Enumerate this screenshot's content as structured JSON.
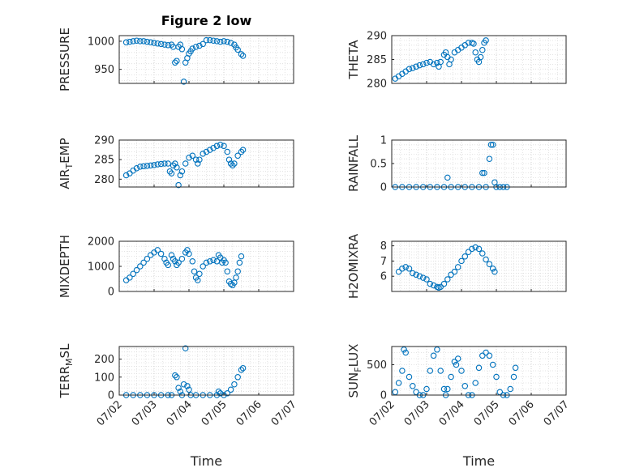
{
  "chart_data": {
    "title": "Figure 2 low",
    "xlabel": "Time",
    "marker_color": "#0072BD",
    "x_ticks": [
      "07/02",
      "07/03",
      "07/04",
      "07/05",
      "07/06",
      "07/07"
    ],
    "x_range_days": [
      2,
      7
    ],
    "subplots": [
      {
        "type": "scatter",
        "ylabel": "PRESSURE",
        "ylim": [
          925,
          1010
        ],
        "yticks": [
          "950",
          "1000"
        ],
        "ytick_values": [
          950,
          1000
        ],
        "grid": true,
        "points": [
          [
            2.2,
            998
          ],
          [
            2.3,
            999
          ],
          [
            2.4,
            1000
          ],
          [
            2.5,
            1001
          ],
          [
            2.6,
            1000
          ],
          [
            2.7,
            1000
          ],
          [
            2.8,
            999
          ],
          [
            2.9,
            998
          ],
          [
            3.0,
            997
          ],
          [
            3.1,
            996
          ],
          [
            3.2,
            995
          ],
          [
            3.3,
            994
          ],
          [
            3.4,
            993
          ],
          [
            3.5,
            994
          ],
          [
            3.55,
            990
          ],
          [
            3.6,
            962
          ],
          [
            3.65,
            965
          ],
          [
            3.7,
            990
          ],
          [
            3.75,
            994
          ],
          [
            3.8,
            986
          ],
          [
            3.85,
            928
          ],
          [
            3.9,
            962
          ],
          [
            3.95,
            970
          ],
          [
            4.0,
            978
          ],
          [
            4.05,
            982
          ],
          [
            4.1,
            987
          ],
          [
            4.2,
            990
          ],
          [
            4.3,
            992
          ],
          [
            4.4,
            995
          ],
          [
            4.5,
            1002
          ],
          [
            4.6,
            1002
          ],
          [
            4.7,
            1001
          ],
          [
            4.8,
            1000
          ],
          [
            4.9,
            999
          ],
          [
            5.0,
            1000
          ],
          [
            5.1,
            999
          ],
          [
            5.2,
            997
          ],
          [
            5.3,
            994
          ],
          [
            5.35,
            989
          ],
          [
            5.4,
            985
          ],
          [
            5.5,
            977
          ],
          [
            5.55,
            974
          ]
        ]
      },
      {
        "type": "scatter",
        "ylabel": "THETA",
        "ylim": [
          280,
          290
        ],
        "yticks": [
          "280",
          "285",
          "290"
        ],
        "ytick_values": [
          280,
          285,
          290
        ],
        "grid": true,
        "points": [
          [
            2.1,
            281
          ],
          [
            2.2,
            281.5
          ],
          [
            2.3,
            282
          ],
          [
            2.4,
            282.5
          ],
          [
            2.5,
            283
          ],
          [
            2.6,
            283.2
          ],
          [
            2.7,
            283.5
          ],
          [
            2.8,
            283.8
          ],
          [
            2.9,
            284
          ],
          [
            3.0,
            284.3
          ],
          [
            3.1,
            284.5
          ],
          [
            3.2,
            284
          ],
          [
            3.3,
            284.3
          ],
          [
            3.35,
            283.5
          ],
          [
            3.4,
            284.5
          ],
          [
            3.5,
            286
          ],
          [
            3.55,
            286.5
          ],
          [
            3.6,
            285.5
          ],
          [
            3.65,
            284
          ],
          [
            3.7,
            285
          ],
          [
            3.8,
            286.5
          ],
          [
            3.9,
            287
          ],
          [
            4.0,
            287.5
          ],
          [
            4.1,
            288
          ],
          [
            4.2,
            288.5
          ],
          [
            4.3,
            288.5
          ],
          [
            4.35,
            288.3
          ],
          [
            4.4,
            286.5
          ],
          [
            4.45,
            285
          ],
          [
            4.5,
            284.5
          ],
          [
            4.55,
            285.5
          ],
          [
            4.6,
            287
          ],
          [
            4.65,
            288.5
          ],
          [
            4.7,
            289
          ]
        ]
      },
      {
        "type": "scatter",
        "ylabel": "AIR_TEMP",
        "ylim": [
          278,
          290
        ],
        "yticks": [
          "280",
          "285",
          "290"
        ],
        "ytick_values": [
          280,
          285,
          290
        ],
        "grid": true,
        "points": [
          [
            2.2,
            281
          ],
          [
            2.3,
            281.5
          ],
          [
            2.4,
            282.2
          ],
          [
            2.5,
            282.8
          ],
          [
            2.6,
            283.2
          ],
          [
            2.7,
            283.3
          ],
          [
            2.8,
            283.4
          ],
          [
            2.9,
            283.5
          ],
          [
            3.0,
            283.6
          ],
          [
            3.1,
            283.8
          ],
          [
            3.2,
            283.9
          ],
          [
            3.3,
            284
          ],
          [
            3.4,
            284
          ],
          [
            3.45,
            282
          ],
          [
            3.5,
            281.5
          ],
          [
            3.55,
            283.5
          ],
          [
            3.6,
            284
          ],
          [
            3.65,
            283
          ],
          [
            3.7,
            278.5
          ],
          [
            3.75,
            281
          ],
          [
            3.8,
            282
          ],
          [
            3.9,
            284
          ],
          [
            4.0,
            285.5
          ],
          [
            4.1,
            286
          ],
          [
            4.2,
            285
          ],
          [
            4.25,
            284
          ],
          [
            4.3,
            285
          ],
          [
            4.4,
            286.5
          ],
          [
            4.5,
            287
          ],
          [
            4.6,
            287.5
          ],
          [
            4.7,
            288
          ],
          [
            4.8,
            288.5
          ],
          [
            4.9,
            288.8
          ],
          [
            5.0,
            288.5
          ],
          [
            5.1,
            287
          ],
          [
            5.15,
            285
          ],
          [
            5.2,
            284
          ],
          [
            5.25,
            283.5
          ],
          [
            5.3,
            284
          ],
          [
            5.4,
            286
          ],
          [
            5.5,
            287
          ],
          [
            5.55,
            287.5
          ]
        ]
      },
      {
        "type": "scatter",
        "ylabel": "RAINFALL",
        "ylim": [
          0,
          1
        ],
        "yticks": [
          "0",
          "0.5",
          "1"
        ],
        "ytick_values": [
          0,
          0.5,
          1
        ],
        "grid": true,
        "points": [
          [
            2.1,
            0
          ],
          [
            2.3,
            0
          ],
          [
            2.5,
            0
          ],
          [
            2.7,
            0
          ],
          [
            2.9,
            0
          ],
          [
            3.1,
            0
          ],
          [
            3.3,
            0
          ],
          [
            3.5,
            0
          ],
          [
            3.6,
            0.2
          ],
          [
            3.7,
            0
          ],
          [
            3.9,
            0
          ],
          [
            4.1,
            0
          ],
          [
            4.3,
            0
          ],
          [
            4.5,
            0
          ],
          [
            4.6,
            0.3
          ],
          [
            4.65,
            0.3
          ],
          [
            4.7,
            0
          ],
          [
            4.8,
            0.6
          ],
          [
            4.85,
            0.9
          ],
          [
            4.9,
            0.9
          ],
          [
            4.95,
            0.1
          ],
          [
            5.0,
            0
          ],
          [
            5.1,
            0
          ],
          [
            5.2,
            0
          ],
          [
            5.3,
            0
          ]
        ]
      },
      {
        "type": "scatter",
        "ylabel": "MIXDEPTH",
        "ylim": [
          0,
          2000
        ],
        "yticks": [
          "0",
          "1000",
          "2000"
        ],
        "ytick_values": [
          0,
          1000,
          2000
        ],
        "grid": true,
        "points": [
          [
            2.2,
            450
          ],
          [
            2.3,
            550
          ],
          [
            2.4,
            700
          ],
          [
            2.5,
            850
          ],
          [
            2.6,
            1000
          ],
          [
            2.7,
            1150
          ],
          [
            2.8,
            1300
          ],
          [
            2.9,
            1450
          ],
          [
            3.0,
            1550
          ],
          [
            3.1,
            1650
          ],
          [
            3.2,
            1500
          ],
          [
            3.3,
            1300
          ],
          [
            3.35,
            1150
          ],
          [
            3.4,
            1050
          ],
          [
            3.5,
            1450
          ],
          [
            3.55,
            1300
          ],
          [
            3.6,
            1200
          ],
          [
            3.65,
            1050
          ],
          [
            3.7,
            1150
          ],
          [
            3.8,
            1300
          ],
          [
            3.9,
            1550
          ],
          [
            3.95,
            1650
          ],
          [
            4.0,
            1500
          ],
          [
            4.1,
            1200
          ],
          [
            4.15,
            800
          ],
          [
            4.2,
            550
          ],
          [
            4.25,
            450
          ],
          [
            4.3,
            700
          ],
          [
            4.4,
            1000
          ],
          [
            4.5,
            1150
          ],
          [
            4.6,
            1200
          ],
          [
            4.7,
            1250
          ],
          [
            4.8,
            1200
          ],
          [
            4.85,
            1450
          ],
          [
            4.9,
            1350
          ],
          [
            4.95,
            1150
          ],
          [
            5.0,
            1250
          ],
          [
            5.05,
            1150
          ],
          [
            5.1,
            800
          ],
          [
            5.15,
            400
          ],
          [
            5.2,
            300
          ],
          [
            5.25,
            250
          ],
          [
            5.3,
            350
          ],
          [
            5.35,
            550
          ],
          [
            5.4,
            800
          ],
          [
            5.45,
            1150
          ],
          [
            5.5,
            1400
          ]
        ]
      },
      {
        "type": "scatter",
        "ylabel": "H2OMIXRA",
        "ylim": [
          5,
          8.3
        ],
        "yticks": [
          "6",
          "7",
          "8"
        ],
        "ytick_values": [
          6,
          7,
          8
        ],
        "grid": true,
        "points": [
          [
            2.2,
            6.3
          ],
          [
            2.3,
            6.5
          ],
          [
            2.4,
            6.6
          ],
          [
            2.5,
            6.5
          ],
          [
            2.6,
            6.2
          ],
          [
            2.7,
            6.1
          ],
          [
            2.8,
            6.0
          ],
          [
            2.9,
            5.9
          ],
          [
            3.0,
            5.8
          ],
          [
            3.1,
            5.5
          ],
          [
            3.2,
            5.4
          ],
          [
            3.3,
            5.3
          ],
          [
            3.35,
            5.25
          ],
          [
            3.4,
            5.3
          ],
          [
            3.5,
            5.5
          ],
          [
            3.6,
            5.8
          ],
          [
            3.7,
            6.1
          ],
          [
            3.8,
            6.3
          ],
          [
            3.9,
            6.6
          ],
          [
            4.0,
            7.0
          ],
          [
            4.1,
            7.3
          ],
          [
            4.2,
            7.6
          ],
          [
            4.3,
            7.8
          ],
          [
            4.4,
            7.9
          ],
          [
            4.5,
            7.8
          ],
          [
            4.6,
            7.5
          ],
          [
            4.7,
            7.1
          ],
          [
            4.8,
            6.8
          ],
          [
            4.9,
            6.5
          ],
          [
            4.95,
            6.3
          ]
        ]
      },
      {
        "type": "scatter",
        "ylabel": "TERR_MSL",
        "ylim": [
          0,
          270
        ],
        "yticks": [
          "0",
          "100",
          "200"
        ],
        "ytick_values": [
          0,
          100,
          200
        ],
        "grid": true,
        "points": [
          [
            2.2,
            0
          ],
          [
            2.4,
            0
          ],
          [
            2.6,
            0
          ],
          [
            2.8,
            0
          ],
          [
            3.0,
            0
          ],
          [
            3.2,
            0
          ],
          [
            3.4,
            0
          ],
          [
            3.5,
            0
          ],
          [
            3.6,
            110
          ],
          [
            3.65,
            100
          ],
          [
            3.7,
            40
          ],
          [
            3.75,
            20
          ],
          [
            3.8,
            0
          ],
          [
            3.85,
            60
          ],
          [
            3.9,
            260
          ],
          [
            3.95,
            50
          ],
          [
            4.0,
            30
          ],
          [
            4.05,
            0
          ],
          [
            4.2,
            0
          ],
          [
            4.4,
            0
          ],
          [
            4.6,
            0
          ],
          [
            4.8,
            0
          ],
          [
            4.85,
            20
          ],
          [
            4.9,
            10
          ],
          [
            5.0,
            0
          ],
          [
            5.1,
            10
          ],
          [
            5.2,
            30
          ],
          [
            5.3,
            60
          ],
          [
            5.4,
            100
          ],
          [
            5.5,
            140
          ],
          [
            5.55,
            150
          ]
        ]
      },
      {
        "type": "scatter",
        "ylabel": "SUN_FLUX",
        "ylim": [
          0,
          800
        ],
        "yticks": [
          "0",
          "500"
        ],
        "ytick_values": [
          0,
          500
        ],
        "grid": true,
        "points": [
          [
            2.1,
            50
          ],
          [
            2.2,
            200
          ],
          [
            2.3,
            400
          ],
          [
            2.35,
            750
          ],
          [
            2.4,
            700
          ],
          [
            2.5,
            300
          ],
          [
            2.6,
            150
          ],
          [
            2.7,
            50
          ],
          [
            2.8,
            0
          ],
          [
            2.9,
            0
          ],
          [
            3.0,
            100
          ],
          [
            3.1,
            400
          ],
          [
            3.2,
            650
          ],
          [
            3.3,
            750
          ],
          [
            3.4,
            400
          ],
          [
            3.5,
            100
          ],
          [
            3.55,
            0
          ],
          [
            3.6,
            100
          ],
          [
            3.7,
            300
          ],
          [
            3.8,
            550
          ],
          [
            3.85,
            500
          ],
          [
            3.9,
            600
          ],
          [
            4.0,
            400
          ],
          [
            4.1,
            150
          ],
          [
            4.2,
            0
          ],
          [
            4.3,
            0
          ],
          [
            4.4,
            200
          ],
          [
            4.5,
            450
          ],
          [
            4.6,
            650
          ],
          [
            4.7,
            700
          ],
          [
            4.8,
            650
          ],
          [
            4.9,
            500
          ],
          [
            5.0,
            300
          ],
          [
            5.1,
            50
          ],
          [
            5.2,
            0
          ],
          [
            5.3,
            0
          ],
          [
            5.4,
            100
          ],
          [
            5.5,
            300
          ],
          [
            5.55,
            450
          ]
        ]
      }
    ]
  }
}
